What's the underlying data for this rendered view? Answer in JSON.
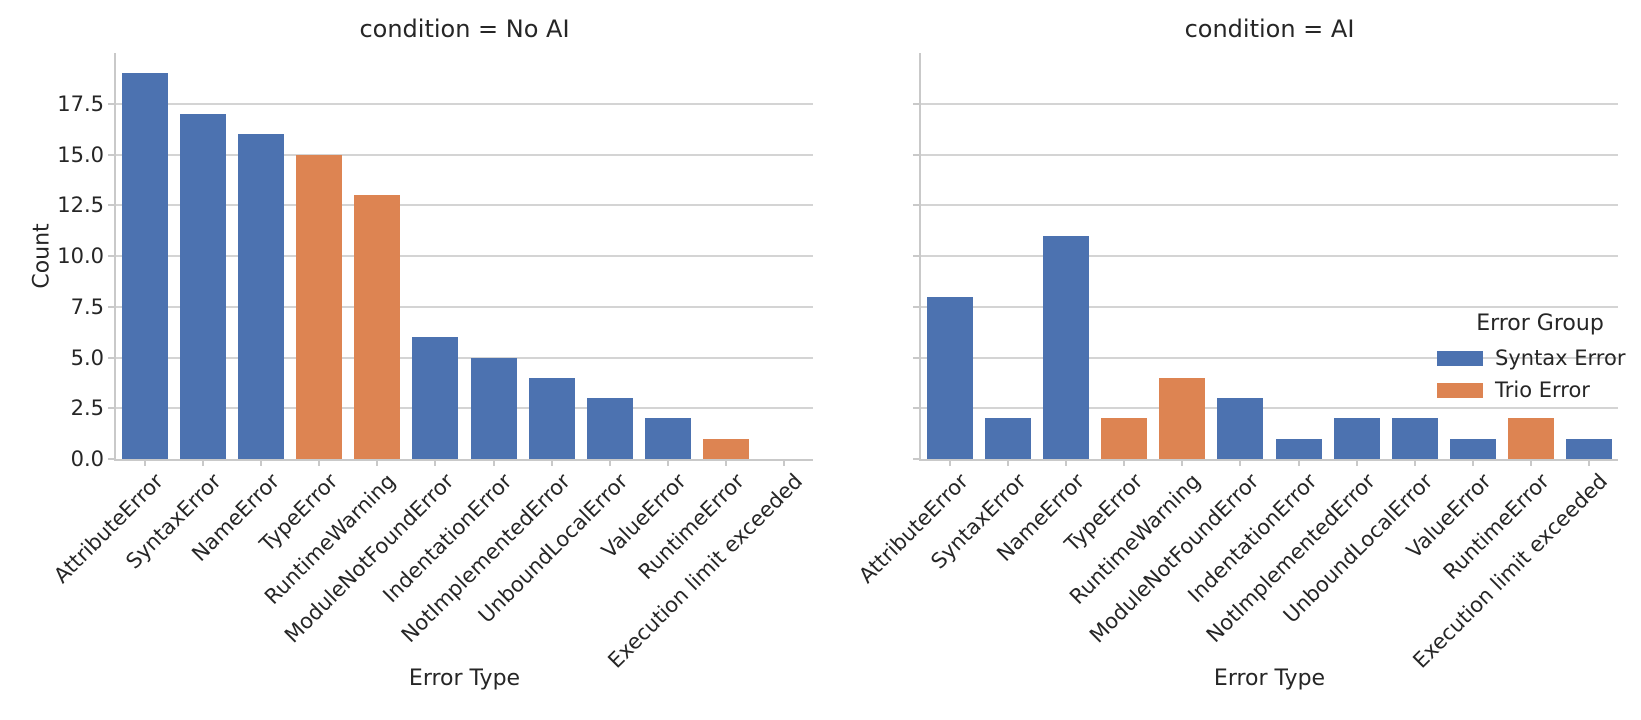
{
  "chart_data": {
    "type": "bar",
    "categories": [
      "AttributeError",
      "SyntaxError",
      "NameError",
      "TypeError",
      "RuntimeWarning",
      "ModuleNotFoundError",
      "IndentationError",
      "NotImplementedError",
      "UnboundLocalError",
      "ValueError",
      "RuntimeError",
      "Execution limit exceeded"
    ],
    "category_groups": [
      "Syntax Error",
      "Syntax Error",
      "Syntax Error",
      "Trio Error",
      "Trio Error",
      "Syntax Error",
      "Syntax Error",
      "Syntax Error",
      "Syntax Error",
      "Syntax Error",
      "Trio Error",
      "Syntax Error"
    ],
    "facets": [
      {
        "title": "condition = No AI",
        "values": [
          19,
          17,
          16,
          15,
          13,
          6,
          5,
          4,
          3,
          2,
          1,
          0
        ]
      },
      {
        "title": "condition = AI",
        "values": [
          8,
          2,
          11,
          2,
          4,
          3,
          1,
          2,
          2,
          1,
          2,
          1
        ]
      }
    ],
    "xlabel": "Error Type",
    "ylabel": "Count",
    "ylim": [
      0,
      20
    ],
    "ytick_labels": [
      "0.0",
      "2.5",
      "5.0",
      "7.5",
      "10.0",
      "12.5",
      "15.0",
      "17.5"
    ],
    "grid": true,
    "legend": {
      "title": "Error Group",
      "position": "right",
      "entries": [
        {
          "label": "Syntax Error",
          "color": "#4C72B0"
        },
        {
          "label": "Trio Error",
          "color": "#DD8452"
        }
      ]
    },
    "colors": {
      "Syntax Error": "#4C72B0",
      "Trio Error": "#DD8452"
    }
  }
}
